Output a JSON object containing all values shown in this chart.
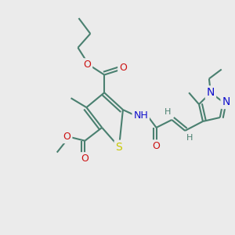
{
  "bg_color": "#ebebeb",
  "bond_color": "#4a8070",
  "bond_lw": 1.5,
  "dbo": 0.012,
  "atom_colors": {
    "S": "#c8c800",
    "N": "#1010cc",
    "O": "#cc1010",
    "H": "#4a8070",
    "C": "#4a8070"
  },
  "fs": 8.5
}
